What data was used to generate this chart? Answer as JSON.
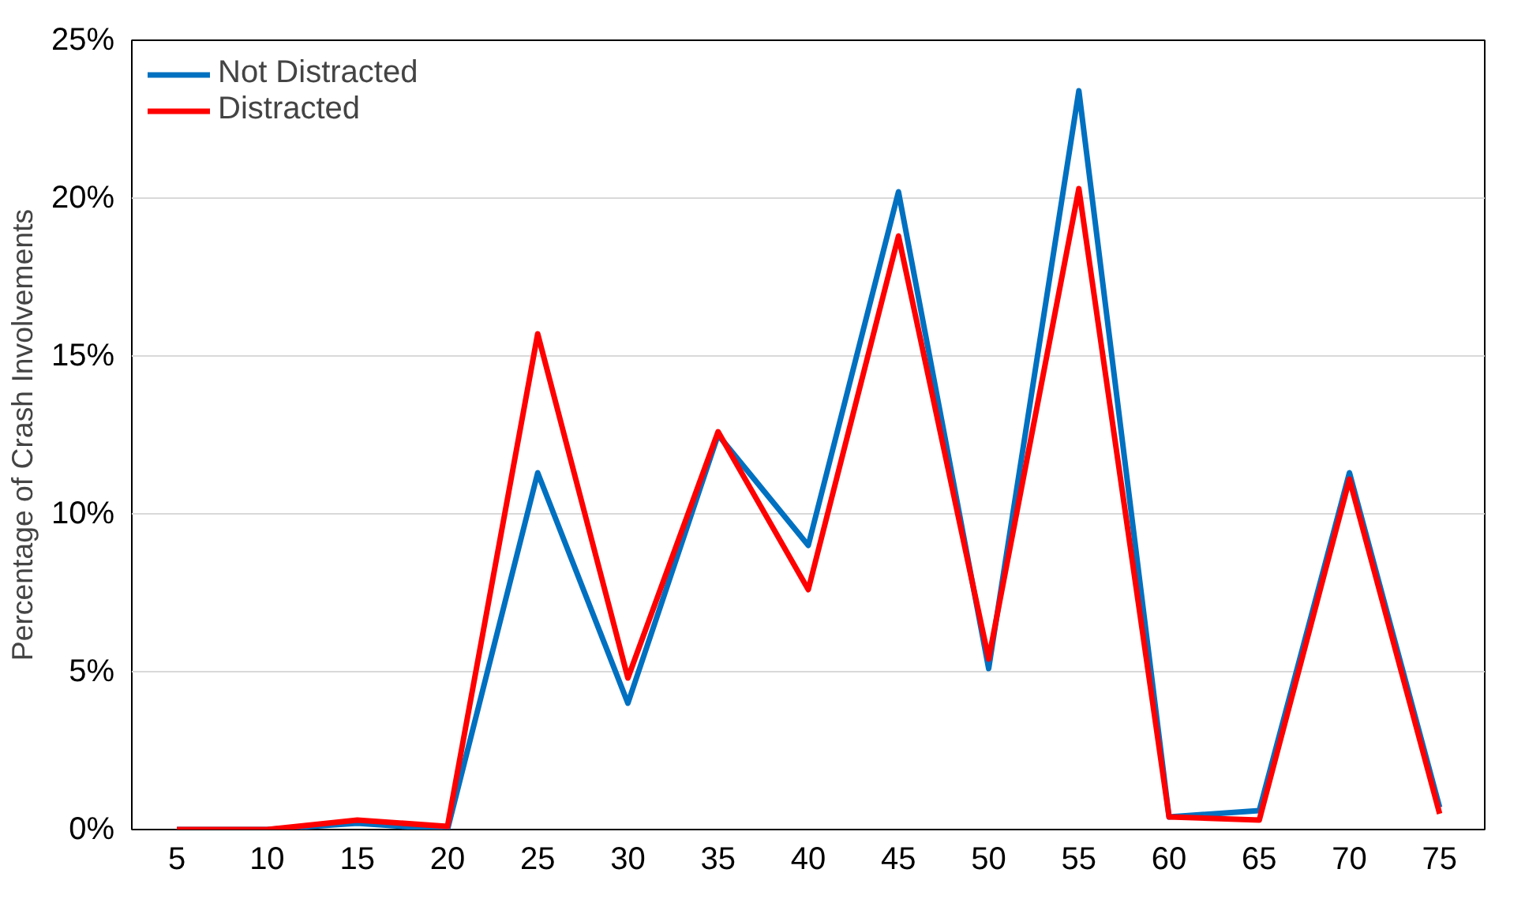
{
  "chart_data": {
    "type": "line",
    "ylabel": "Percentage of Crash Involvements",
    "categories": [
      "5",
      "10",
      "15",
      "20",
      "25",
      "30",
      "35",
      "40",
      "45",
      "50",
      "55",
      "60",
      "65",
      "70",
      "75"
    ],
    "series": [
      {
        "name": "Not Distracted",
        "color": "#0070c0",
        "values": [
          0,
          0,
          0.2,
          0,
          11.3,
          4.0,
          12.5,
          9.0,
          20.2,
          5.1,
          23.4,
          0.4,
          0.6,
          11.3,
          0.7
        ]
      },
      {
        "name": "Distracted",
        "color": "#ff0000",
        "values": [
          0,
          0,
          0.3,
          0.1,
          15.7,
          4.8,
          12.6,
          7.6,
          18.8,
          5.4,
          20.3,
          0.4,
          0.3,
          11.1,
          0.5
        ]
      }
    ],
    "ylim": [
      0,
      25
    ],
    "yticks": [
      {
        "value": 0,
        "label": "0%"
      },
      {
        "value": 5,
        "label": "5%"
      },
      {
        "value": 10,
        "label": "10%"
      },
      {
        "value": 15,
        "label": "15%"
      },
      {
        "value": 20,
        "label": "20%"
      },
      {
        "value": 25,
        "label": "25%"
      }
    ],
    "grid": "y",
    "legend": "top left",
    "marker": "none",
    "line_style": "solid"
  }
}
